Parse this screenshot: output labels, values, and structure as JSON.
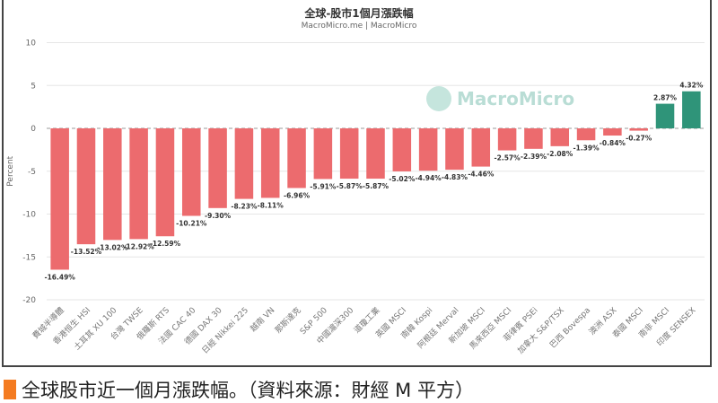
{
  "chart_data": {
    "type": "bar",
    "title": "全球-股市1個月漲跌幅",
    "subtitle": "MacroMicro.me | MacroMicro",
    "watermark": "MacroMicro",
    "xlabel": "",
    "ylabel": "Percent",
    "ylim": [
      -20,
      10
    ],
    "yticks": [
      10,
      5,
      0,
      -5,
      -10,
      -15,
      -20
    ],
    "grid": true,
    "categories": [
      "費城半導體",
      "香港恒生 HSI",
      "土耳其 XU 100",
      "台灣 TWSE",
      "俄羅斯 RTS",
      "法國 CAC 40",
      "德國 DAX 30",
      "日經 Nikkei 225",
      "越南 VN",
      "那斯達克",
      "S&P 500",
      "中國滬深300",
      "道瓊工業",
      "英國 MSCI",
      "南韓 Kospi",
      "阿根廷 Merval",
      "新加坡 MSCI",
      "馬來西亞 MSCI",
      "菲律賓 PSEi",
      "加拿大 S&P/TSX",
      "巴西 Bovespa",
      "澳洲 ASX",
      "泰國 MSCI",
      "南非 MSCI",
      "印度 SENSEX"
    ],
    "values": [
      -16.49,
      -13.52,
      -13.02,
      -12.92,
      -12.59,
      -10.21,
      -9.3,
      -8.23,
      -8.11,
      -6.96,
      -5.91,
      -5.87,
      -5.87,
      -5.02,
      -4.94,
      -4.83,
      -4.46,
      -2.57,
      -2.39,
      -2.08,
      -1.39,
      -0.84,
      -0.27,
      2.87,
      4.32
    ],
    "data_labels": [
      "-16.49%",
      "-13.52%",
      "-13.02%",
      "-12.92%",
      "-12.59%",
      "-10.21%",
      "-9.30%",
      "-8.23%",
      "-8.11%",
      "-6.96%",
      "-5.91%",
      "-5.87%",
      "-5.87%",
      "-5.02%",
      "-4.94%",
      "-4.83%",
      "-4.46%",
      "-2.57%",
      "-2.39%",
      "-2.08%",
      "-1.39%",
      "-0.84%",
      "-0.27%",
      "2.87%",
      "4.32%"
    ],
    "colors": {
      "negative": "#ec6b6e",
      "positive": "#2f9479"
    }
  },
  "caption": "全球股市近一個月漲跌幅。（資料來源：財經 M 平方）"
}
